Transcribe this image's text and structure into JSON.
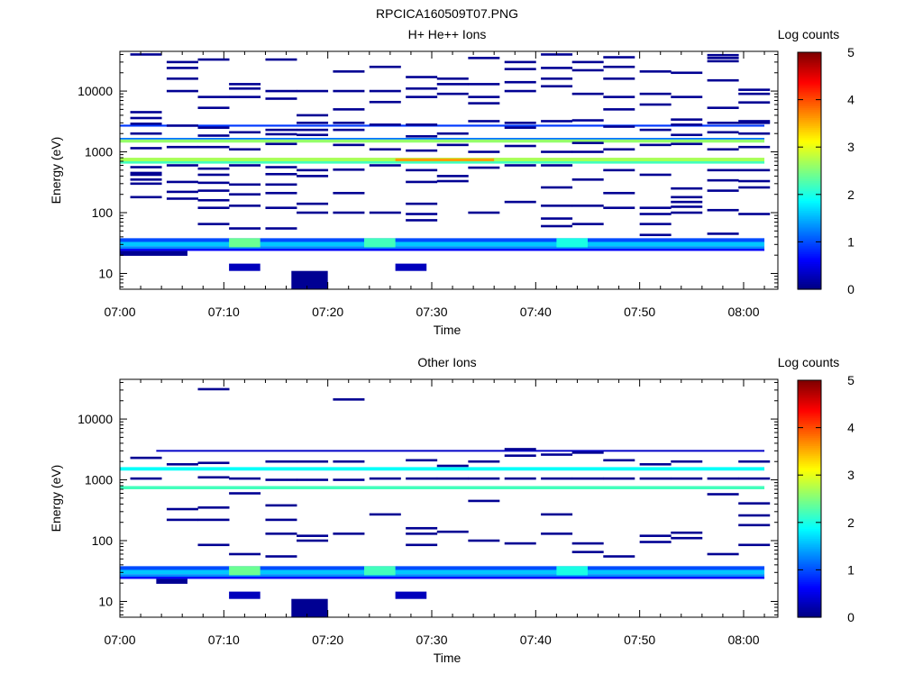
{
  "figure": {
    "title": "RPCICA160509T07.PNG"
  },
  "colormap": [
    "#00007f",
    "#0000ff",
    "#007fff",
    "#00ffff",
    "#7fff7f",
    "#ffff00",
    "#ff7f00",
    "#ff0000",
    "#7f0000"
  ],
  "chart_data": [
    {
      "type": "heatmap",
      "title": "H+ He++ Ions",
      "xlabel": "Time",
      "ylabel": "Energy (eV)",
      "colorbar_label": "Log counts",
      "x_ticks": [
        "07:00",
        "07:10",
        "07:20",
        "07:30",
        "07:40",
        "07:50",
        "08:00"
      ],
      "y_ticks": [
        "10",
        "100",
        "1000",
        "10000"
      ],
      "y_scale": "log",
      "ylim": [
        5.5,
        45000
      ],
      "xlim_minutes": [
        0,
        63
      ],
      "clim": [
        0,
        5
      ],
      "colorbar_ticks": [
        "0",
        "1",
        "2",
        "3",
        "4",
        "5"
      ],
      "bands": [
        {
          "emin": 700,
          "emax": 800,
          "t0": 0,
          "t1": 62,
          "value": 2.7
        },
        {
          "emin": 700,
          "emax": 780,
          "t0": 26.5,
          "t1": 36,
          "value": 3.6
        },
        {
          "emin": 640,
          "emax": 700,
          "t0": 0,
          "t1": 62,
          "value": 2.2
        },
        {
          "emin": 1420,
          "emax": 1600,
          "t0": 0,
          "t1": 62,
          "value": 2.6
        },
        {
          "emin": 1600,
          "emax": 1700,
          "t0": 0,
          "t1": 62,
          "value": 1.2
        },
        {
          "emin": 2600,
          "emax": 2800,
          "t0": 0,
          "t1": 62,
          "value": 0.9
        },
        {
          "emin": 33,
          "emax": 38,
          "t0": 0,
          "t1": 62,
          "value": 1.0
        },
        {
          "emin": 28,
          "emax": 33,
          "t0": 0,
          "t1": 62,
          "value": 1.6
        },
        {
          "emin": 25.5,
          "emax": 28,
          "t0": 0,
          "t1": 62,
          "value": 1.3
        },
        {
          "emin": 23.5,
          "emax": 25.5,
          "t0": 0,
          "t1": 62,
          "value": 0.6
        },
        {
          "emin": 27,
          "emax": 38,
          "t0": 10.5,
          "t1": 13.5,
          "value": 2.4
        },
        {
          "emin": 27,
          "emax": 38,
          "t0": 23.5,
          "t1": 26.5,
          "value": 2.2
        },
        {
          "emin": 27,
          "emax": 38,
          "t0": 42,
          "t1": 45,
          "value": 2.0
        },
        {
          "emin": 19.5,
          "emax": 23.5,
          "t0": 0,
          "t1": 6.5,
          "value": 0.1
        },
        {
          "emin": 11,
          "emax": 14.5,
          "t0": 10.5,
          "t1": 13.5,
          "value": 0.3
        },
        {
          "emin": 11,
          "emax": 14.5,
          "t0": 26.5,
          "t1": 29.5,
          "value": 0.3
        },
        {
          "emin": 5.5,
          "emax": 11,
          "t0": 16.5,
          "t1": 20,
          "value": 0.1
        }
      ],
      "cells": [
        [
          1,
          40000
        ],
        [
          1,
          4500
        ],
        [
          1,
          3600
        ],
        [
          1,
          2900
        ],
        [
          1,
          2000
        ],
        [
          1,
          1150
        ],
        [
          1,
          560
        ],
        [
          1,
          450
        ],
        [
          1,
          420
        ],
        [
          1,
          350
        ],
        [
          1,
          300
        ],
        [
          1,
          180
        ],
        [
          4.5,
          30000
        ],
        [
          4.5,
          24000
        ],
        [
          4.5,
          16000
        ],
        [
          4.5,
          10000
        ],
        [
          4.5,
          2700
        ],
        [
          4.5,
          1200
        ],
        [
          4.5,
          600
        ],
        [
          4.5,
          320
        ],
        [
          4.5,
          220
        ],
        [
          4.5,
          170
        ],
        [
          7.5,
          33000
        ],
        [
          7.5,
          8000
        ],
        [
          7.5,
          5300
        ],
        [
          7.5,
          2500
        ],
        [
          7.5,
          1850
        ],
        [
          7.5,
          1200
        ],
        [
          7.5,
          530
        ],
        [
          7.5,
          420
        ],
        [
          7.5,
          310
        ],
        [
          7.5,
          230
        ],
        [
          7.5,
          160
        ],
        [
          7.5,
          120
        ],
        [
          7.5,
          65
        ],
        [
          10.5,
          13000
        ],
        [
          10.5,
          11000
        ],
        [
          10.5,
          8000
        ],
        [
          10.5,
          2100
        ],
        [
          10.5,
          1100
        ],
        [
          10.5,
          600
        ],
        [
          10.5,
          290
        ],
        [
          10.5,
          200
        ],
        [
          10.5,
          130
        ],
        [
          10.5,
          55
        ],
        [
          14,
          33000
        ],
        [
          14,
          10000
        ],
        [
          14,
          7500
        ],
        [
          14,
          2300
        ],
        [
          14,
          1950
        ],
        [
          14,
          1350
        ],
        [
          14,
          560
        ],
        [
          14,
          430
        ],
        [
          14,
          290
        ],
        [
          14,
          210
        ],
        [
          14,
          120
        ],
        [
          14,
          55
        ],
        [
          17,
          10000
        ],
        [
          17,
          4000
        ],
        [
          17,
          3000
        ],
        [
          17,
          2300
        ],
        [
          17,
          1900
        ],
        [
          17,
          500
        ],
        [
          17,
          400
        ],
        [
          17,
          140
        ],
        [
          17,
          100
        ],
        [
          20.5,
          21000
        ],
        [
          20.5,
          10000
        ],
        [
          20.5,
          5000
        ],
        [
          20.5,
          3000
        ],
        [
          20.5,
          2300
        ],
        [
          20.5,
          1300
        ],
        [
          20.5,
          510
        ],
        [
          20.5,
          210
        ],
        [
          20.5,
          100
        ],
        [
          24,
          25000
        ],
        [
          24,
          10000
        ],
        [
          24,
          6600
        ],
        [
          24,
          2800
        ],
        [
          24,
          1100
        ],
        [
          24,
          600
        ],
        [
          24,
          100
        ],
        [
          27.5,
          17000
        ],
        [
          27.5,
          11000
        ],
        [
          27.5,
          8000
        ],
        [
          27.5,
          2800
        ],
        [
          27.5,
          1800
        ],
        [
          27.5,
          1050
        ],
        [
          27.5,
          500
        ],
        [
          27.5,
          320
        ],
        [
          27.5,
          140
        ],
        [
          27.5,
          95
        ],
        [
          27.5,
          75
        ],
        [
          30.5,
          16000
        ],
        [
          30.5,
          13000
        ],
        [
          30.5,
          9000
        ],
        [
          30.5,
          2000
        ],
        [
          30.5,
          1300
        ],
        [
          30.5,
          400
        ],
        [
          30.5,
          330
        ],
        [
          33.5,
          35000
        ],
        [
          33.5,
          13000
        ],
        [
          33.5,
          8000
        ],
        [
          33.5,
          6300
        ],
        [
          33.5,
          3200
        ],
        [
          33.5,
          1000
        ],
        [
          33.5,
          550
        ],
        [
          33.5,
          100
        ],
        [
          37,
          30000
        ],
        [
          37,
          23000
        ],
        [
          37,
          14000
        ],
        [
          37,
          10000
        ],
        [
          37,
          3000
        ],
        [
          37,
          2500
        ],
        [
          37,
          1250
        ],
        [
          37,
          600
        ],
        [
          37,
          150
        ],
        [
          40.5,
          40000
        ],
        [
          40.5,
          24000
        ],
        [
          40.5,
          16000
        ],
        [
          40.5,
          12000
        ],
        [
          40.5,
          3200
        ],
        [
          40.5,
          1000
        ],
        [
          40.5,
          600
        ],
        [
          40.5,
          260
        ],
        [
          40.5,
          130
        ],
        [
          40.5,
          80
        ],
        [
          40.5,
          60
        ],
        [
          43.5,
          30000
        ],
        [
          43.5,
          22000
        ],
        [
          43.5,
          9000
        ],
        [
          43.5,
          3300
        ],
        [
          43.5,
          1400
        ],
        [
          43.5,
          1000
        ],
        [
          43.5,
          350
        ],
        [
          43.5,
          130
        ],
        [
          43.5,
          65
        ],
        [
          46.5,
          36000
        ],
        [
          46.5,
          25000
        ],
        [
          46.5,
          16000
        ],
        [
          46.5,
          8000
        ],
        [
          46.5,
          5000
        ],
        [
          46.5,
          2600
        ],
        [
          46.5,
          1100
        ],
        [
          46.5,
          500
        ],
        [
          46.5,
          210
        ],
        [
          46.5,
          120
        ],
        [
          50,
          21000
        ],
        [
          50,
          9000
        ],
        [
          50,
          6000
        ],
        [
          50,
          2300
        ],
        [
          50,
          1300
        ],
        [
          50,
          420
        ],
        [
          50,
          120
        ],
        [
          50,
          95
        ],
        [
          50,
          65
        ],
        [
          50,
          43
        ],
        [
          53,
          20000
        ],
        [
          53,
          8000
        ],
        [
          53,
          3400
        ],
        [
          53,
          2800
        ],
        [
          53,
          1900
        ],
        [
          53,
          1350
        ],
        [
          53,
          250
        ],
        [
          53,
          180
        ],
        [
          53,
          150
        ],
        [
          53,
          125
        ],
        [
          53,
          100
        ],
        [
          56.5,
          39000
        ],
        [
          56.5,
          35000
        ],
        [
          56.5,
          31000
        ],
        [
          56.5,
          15000
        ],
        [
          56.5,
          5300
        ],
        [
          56.5,
          3000
        ],
        [
          56.5,
          2100
        ],
        [
          56.5,
          1100
        ],
        [
          56.5,
          500
        ],
        [
          56.5,
          340
        ],
        [
          56.5,
          230
        ],
        [
          56.5,
          110
        ],
        [
          56.5,
          45
        ],
        [
          59.5,
          10500
        ],
        [
          59.5,
          9000
        ],
        [
          59.5,
          6500
        ],
        [
          59.5,
          3200
        ],
        [
          59.5,
          3000
        ],
        [
          59.5,
          2000
        ],
        [
          59.5,
          1200
        ],
        [
          59.5,
          500
        ],
        [
          59.5,
          330
        ],
        [
          59.5,
          260
        ],
        [
          59.5,
          95
        ]
      ]
    },
    {
      "type": "heatmap",
      "title": "Other Ions",
      "xlabel": "Time",
      "ylabel": "Energy (eV)",
      "colorbar_label": "Log counts",
      "x_ticks": [
        "07:00",
        "07:10",
        "07:20",
        "07:30",
        "07:40",
        "07:50",
        "08:00"
      ],
      "y_ticks": [
        "10",
        "100",
        "1000",
        "10000"
      ],
      "y_scale": "log",
      "ylim": [
        5.5,
        45000
      ],
      "xlim_minutes": [
        0,
        63
      ],
      "clim": [
        0,
        5
      ],
      "colorbar_ticks": [
        "0",
        "1",
        "2",
        "3",
        "4",
        "5"
      ],
      "bands": [
        {
          "emin": 700,
          "emax": 790,
          "t0": 0,
          "t1": 62,
          "value": 2.2
        },
        {
          "emin": 1420,
          "emax": 1620,
          "t0": 0,
          "t1": 62,
          "value": 1.9
        },
        {
          "emin": 2900,
          "emax": 3100,
          "t0": 3.5,
          "t1": 62,
          "value": 0.35
        },
        {
          "emin": 33,
          "emax": 38,
          "t0": 0,
          "t1": 62,
          "value": 1.0
        },
        {
          "emin": 28,
          "emax": 33,
          "t0": 0,
          "t1": 62,
          "value": 1.6
        },
        {
          "emin": 25.5,
          "emax": 28,
          "t0": 0,
          "t1": 62,
          "value": 1.3
        },
        {
          "emin": 23.5,
          "emax": 25.5,
          "t0": 0,
          "t1": 62,
          "value": 0.6
        },
        {
          "emin": 27,
          "emax": 38,
          "t0": 10.5,
          "t1": 13.5,
          "value": 2.4
        },
        {
          "emin": 27,
          "emax": 38,
          "t0": 23.5,
          "t1": 26.5,
          "value": 2.2
        },
        {
          "emin": 27,
          "emax": 38,
          "t0": 42,
          "t1": 45,
          "value": 2.0
        },
        {
          "emin": 19.5,
          "emax": 23.5,
          "t0": 3.5,
          "t1": 6.5,
          "value": 0.1
        },
        {
          "emin": 11,
          "emax": 14.5,
          "t0": 10.5,
          "t1": 13.5,
          "value": 0.3
        },
        {
          "emin": 11,
          "emax": 14.5,
          "t0": 26.5,
          "t1": 29.5,
          "value": 0.3
        },
        {
          "emin": 5.5,
          "emax": 11,
          "t0": 16.5,
          "t1": 20,
          "value": 0.1
        }
      ],
      "cells": [
        [
          1,
          2300
        ],
        [
          1,
          1050
        ],
        [
          4.5,
          1800
        ],
        [
          4.5,
          330
        ],
        [
          4.5,
          220
        ],
        [
          7.5,
          31000
        ],
        [
          7.5,
          1900
        ],
        [
          7.5,
          1100
        ],
        [
          7.5,
          350
        ],
        [
          7.5,
          220
        ],
        [
          7.5,
          85
        ],
        [
          10.5,
          1050
        ],
        [
          10.5,
          600
        ],
        [
          10.5,
          60
        ],
        [
          14,
          2000
        ],
        [
          14,
          1000
        ],
        [
          14,
          380
        ],
        [
          14,
          220
        ],
        [
          14,
          130
        ],
        [
          14,
          55
        ],
        [
          17,
          2000
        ],
        [
          17,
          1000
        ],
        [
          17,
          120
        ],
        [
          17,
          100
        ],
        [
          20.5,
          21000
        ],
        [
          20.5,
          2000
        ],
        [
          20.5,
          1000
        ],
        [
          20.5,
          130
        ],
        [
          24,
          1050
        ],
        [
          24,
          270
        ],
        [
          27.5,
          2100
        ],
        [
          27.5,
          1050
        ],
        [
          27.5,
          160
        ],
        [
          27.5,
          130
        ],
        [
          27.5,
          85
        ],
        [
          30.5,
          1700
        ],
        [
          30.5,
          1050
        ],
        [
          30.5,
          140
        ],
        [
          33.5,
          2000
        ],
        [
          33.5,
          1050
        ],
        [
          33.5,
          450
        ],
        [
          33.5,
          100
        ],
        [
          37,
          3200
        ],
        [
          37,
          2500
        ],
        [
          37,
          1050
        ],
        [
          37,
          90
        ],
        [
          40.5,
          2600
        ],
        [
          40.5,
          1050
        ],
        [
          40.5,
          270
        ],
        [
          40.5,
          130
        ],
        [
          43.5,
          2800
        ],
        [
          43.5,
          1050
        ],
        [
          43.5,
          90
        ],
        [
          43.5,
          65
        ],
        [
          46.5,
          2100
        ],
        [
          46.5,
          1050
        ],
        [
          46.5,
          55
        ],
        [
          50,
          1800
        ],
        [
          50,
          1050
        ],
        [
          50,
          120
        ],
        [
          50,
          95
        ],
        [
          53,
          2000
        ],
        [
          53,
          1050
        ],
        [
          53,
          135
        ],
        [
          53,
          110
        ],
        [
          56.5,
          1050
        ],
        [
          56.5,
          580
        ],
        [
          56.5,
          60
        ],
        [
          59.5,
          2000
        ],
        [
          59.5,
          1050
        ],
        [
          59.5,
          410
        ],
        [
          59.5,
          260
        ],
        [
          59.5,
          180
        ],
        [
          59.5,
          85
        ]
      ]
    }
  ]
}
